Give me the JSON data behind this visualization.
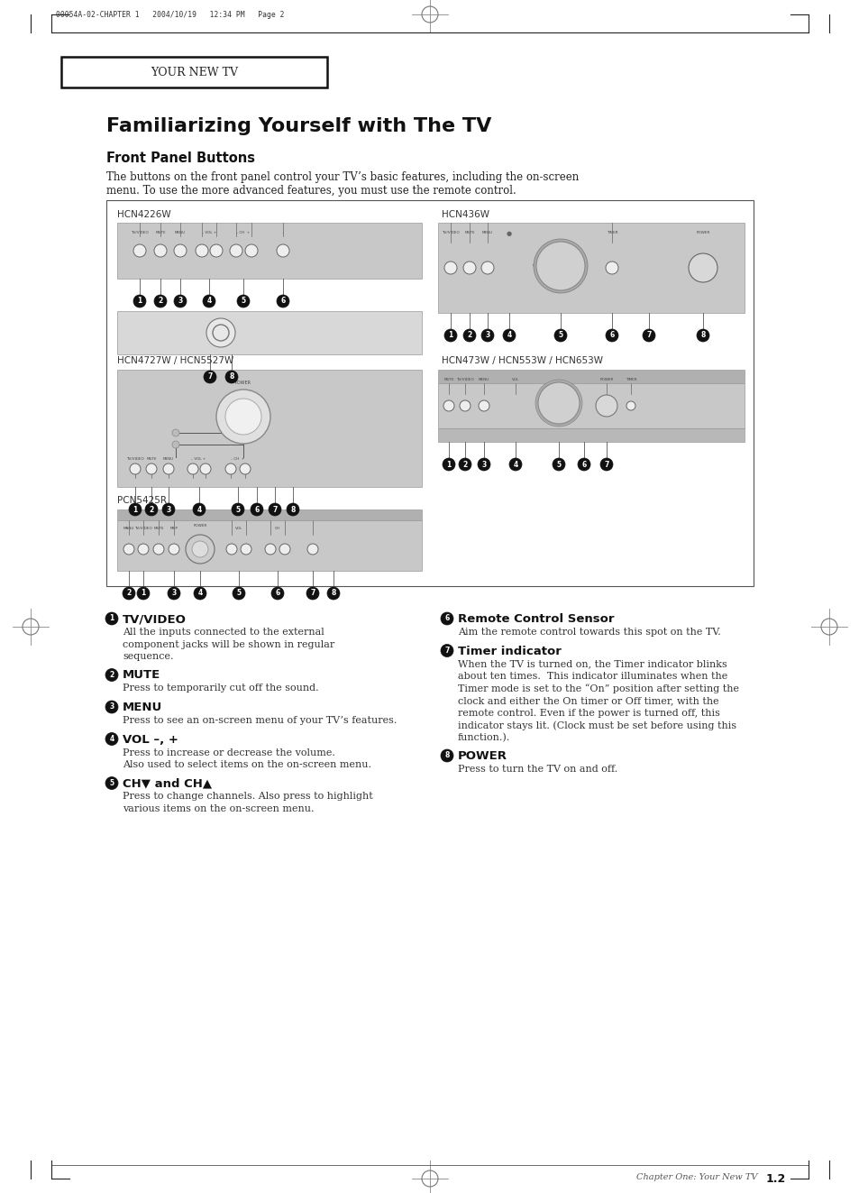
{
  "bg_color": "#ffffff",
  "page_header_text": "00054A-02-CHAPTER 1   2004/10/19   12:34 PM   Page 2",
  "chapter_box_text": "YOUR NEW TV",
  "main_title": "Familiarizing Yourself with The TV",
  "section_title": "Front Panel Buttons",
  "intro_line1": "The buttons on the front panel control your TV’s basic features, including the on-screen",
  "intro_line2": "menu. To use the more advanced features, you must use the remote control.",
  "diagram_labels": [
    "HCN4226W",
    "HCN436W",
    "HCN4727W / HCN5527W",
    "HCN473W / HCN553W / HCN653W",
    "PCN5425R"
  ],
  "items": [
    {
      "num": "1",
      "title": "TV/VIDEO",
      "text": "All the inputs connected to the external\ncomponent jacks will be shown in regular\nsequence."
    },
    {
      "num": "2",
      "title": "MUTE",
      "text": "Press to temporarily cut off the sound."
    },
    {
      "num": "3",
      "title": "MENU",
      "text": "Press to see an on-screen menu of your TV’s features."
    },
    {
      "num": "4",
      "title": "VOL –, +",
      "text": "Press to increase or decrease the volume.\nAlso used to select items on the on-screen menu."
    },
    {
      "num": "5",
      "title": "CH▼ and CH▲",
      "text": "Press to change channels. Also press to highlight\nvarious items on the on-screen menu."
    },
    {
      "num": "6",
      "title": "Remote Control Sensor",
      "text": "Aim the remote control towards this spot on the TV."
    },
    {
      "num": "7",
      "title": "Timer indicator",
      "text": "When the TV is turned on, the Timer indicator blinks\nabout ten times.  This indicator illuminates when the\nTimer mode is set to the “On” position after setting the\nclock and either the On timer or Off timer, with the\nremote control. Even if the power is turned off, this\nindicator stays lit. (Clock must be set before using this\nfunction.)."
    },
    {
      "num": "8",
      "title": "POWER",
      "text": "Press to turn the TV on and off."
    }
  ],
  "footer_text": "Chapter One: Your New TV",
  "footer_num": "1.2"
}
